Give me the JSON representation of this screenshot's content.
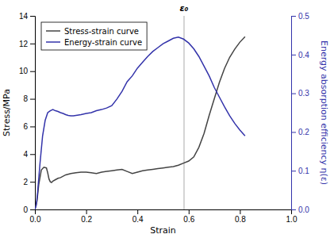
{
  "chart_data": {
    "type": "line",
    "x_label": "Strain",
    "y_label": "Stress/MPa",
    "y2_label": "Energy absorption efficiency η(ε)",
    "series": [
      {
        "name": "Stress-strain curve",
        "color": "#444444",
        "axis": "y",
        "x": [
          0.0,
          0.008,
          0.015,
          0.025,
          0.035,
          0.045,
          0.05,
          0.055,
          0.06,
          0.065,
          0.07,
          0.08,
          0.09,
          0.1,
          0.12,
          0.14,
          0.16,
          0.18,
          0.2,
          0.22,
          0.24,
          0.26,
          0.28,
          0.3,
          0.32,
          0.34,
          0.36,
          0.38,
          0.4,
          0.42,
          0.44,
          0.46,
          0.48,
          0.5,
          0.52,
          0.54,
          0.56,
          0.58,
          0.6,
          0.62,
          0.64,
          0.66,
          0.68,
          0.7,
          0.72,
          0.74,
          0.76,
          0.78,
          0.8,
          0.82
        ],
        "values": [
          0.0,
          0.6,
          1.8,
          2.85,
          3.05,
          3.0,
          2.65,
          2.2,
          2.0,
          1.95,
          2.05,
          2.15,
          2.25,
          2.3,
          2.5,
          2.6,
          2.65,
          2.7,
          2.7,
          2.65,
          2.6,
          2.7,
          2.75,
          2.8,
          2.85,
          2.9,
          2.75,
          2.6,
          2.7,
          2.8,
          2.85,
          2.9,
          2.95,
          3.0,
          3.05,
          3.1,
          3.2,
          3.35,
          3.5,
          3.8,
          4.5,
          5.5,
          6.8,
          8.0,
          9.2,
          10.2,
          11.0,
          11.6,
          12.1,
          12.5
        ]
      },
      {
        "name": "Energy-strain curve",
        "color": "#3333aa",
        "axis": "y2",
        "x": [
          0.0,
          0.005,
          0.01,
          0.02,
          0.03,
          0.04,
          0.05,
          0.06,
          0.07,
          0.08,
          0.09,
          0.1,
          0.11,
          0.12,
          0.13,
          0.14,
          0.15,
          0.16,
          0.17,
          0.18,
          0.2,
          0.22,
          0.24,
          0.26,
          0.28,
          0.3,
          0.32,
          0.34,
          0.36,
          0.38,
          0.4,
          0.42,
          0.44,
          0.46,
          0.48,
          0.5,
          0.52,
          0.54,
          0.56,
          0.58,
          0.6,
          0.62,
          0.64,
          0.66,
          0.68,
          0.7,
          0.72,
          0.74,
          0.76,
          0.78,
          0.8,
          0.82
        ],
        "values": [
          0.0,
          0.01,
          0.04,
          0.12,
          0.19,
          0.23,
          0.25,
          0.255,
          0.258,
          0.255,
          0.253,
          0.25,
          0.248,
          0.245,
          0.243,
          0.242,
          0.242,
          0.243,
          0.244,
          0.245,
          0.248,
          0.25,
          0.255,
          0.258,
          0.262,
          0.268,
          0.285,
          0.305,
          0.33,
          0.345,
          0.365,
          0.38,
          0.395,
          0.408,
          0.418,
          0.428,
          0.435,
          0.442,
          0.445,
          0.44,
          0.43,
          0.415,
          0.395,
          0.37,
          0.345,
          0.315,
          0.29,
          0.265,
          0.242,
          0.222,
          0.205,
          0.19
        ]
      }
    ],
    "annotations": [
      {
        "x": 0.582,
        "text": "ε₀"
      }
    ],
    "xlim": [
      0.0,
      1.0
    ],
    "xticks": [
      {
        "value": 0,
        "label": "0.0"
      },
      0.2,
      0.4,
      0.6,
      0.8,
      {
        "value": 1,
        "label": "1.0"
      }
    ],
    "ylim": [
      0,
      14
    ],
    "yticks": [
      0,
      2,
      4,
      6,
      8,
      10,
      12,
      14
    ],
    "y2lim": [
      0.0,
      0.5
    ],
    "y2ticks": [
      {
        "value": 0,
        "label": "0.0"
      },
      0.1,
      0.2,
      0.3,
      0.4,
      0.5
    ],
    "legend": "upper left"
  }
}
